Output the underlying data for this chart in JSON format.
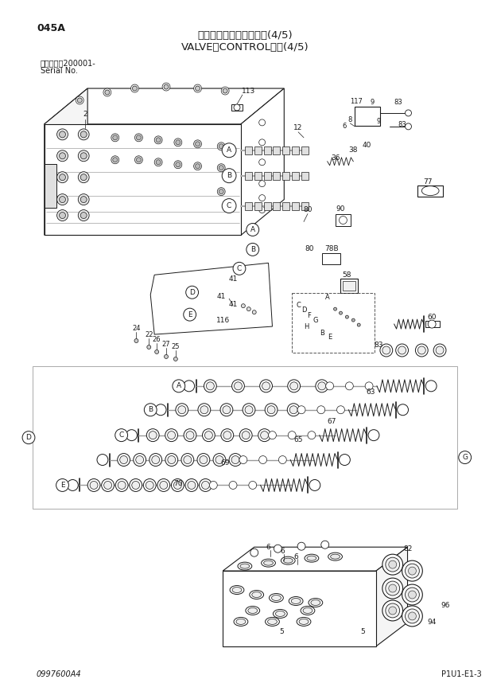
{
  "title_jp": "バルブ：コントロール　(4/5)",
  "title_en": "VALVE：CONTROL　　(4/5)",
  "page_code": "045A",
  "serial_line1": "適用号機　200001-",
  "serial_line2": "Serial No.",
  "doc_number": "0997600A4",
  "page_ref": "P1U1-E1-3",
  "bg_color": "#ffffff",
  "lc": "#1a1a1a"
}
